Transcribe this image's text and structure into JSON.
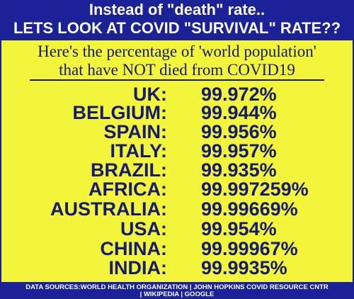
{
  "header": {
    "line1": "Instead of \"death\" rate..",
    "line2": "LETS LOOK AT COVID \"SURVIVAL\" RATE??"
  },
  "subtitle": {
    "line1": "Here's the percentage of 'world population'",
    "line2": "that have NOT died from COVID19"
  },
  "rows": [
    {
      "country": "UK:",
      "value": "99.972%"
    },
    {
      "country": "BELGIUM:",
      "value": "99.944%"
    },
    {
      "country": "SPAIN:",
      "value": "99.956%"
    },
    {
      "country": "ITALY:",
      "value": "99.957%"
    },
    {
      "country": "BRAZIL:",
      "value": "99.935%"
    },
    {
      "country": "AFRICA:",
      "value": "99.997259%"
    },
    {
      "country": "AUSTRALIA:",
      "value": "99.99669%"
    },
    {
      "country": "USA:",
      "value": "99.954%"
    },
    {
      "country": "CHINA:",
      "value": "99.99967%"
    },
    {
      "country": "INDIA:",
      "value": "99.9935%"
    }
  ],
  "footer": {
    "line1": "DATA SOURCES:WORLD HEALTH ORGANIZATION | JOHN HOPKINS COVID RESOURCE CNTR",
    "line2": "| WIKIPEDIA | GOOGLE"
  },
  "colors": {
    "banner_blue": "#1b2196",
    "panel_yellow": "#f3f53a",
    "text_navy": "#151a72",
    "text_white": "#ffffff"
  }
}
